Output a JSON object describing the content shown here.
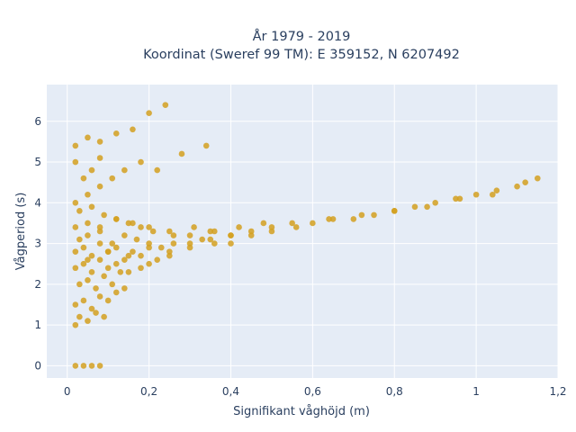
{
  "chart_data": {
    "type": "scatter",
    "title": "År 1979 - 2019",
    "subtitle": "Koordinat (Sweref 99 TM): E 359152, N 6207492",
    "xlabel": "Signifikant våghöjd (m)",
    "ylabel": "Vågperiod (s)",
    "xlim": [
      -0.05,
      1.2
    ],
    "ylim": [
      -0.3,
      6.9
    ],
    "x_ticks": [
      0,
      0.2,
      0.4,
      0.6,
      0.8,
      1,
      1.2
    ],
    "x_tick_labels": [
      "0",
      "0,2",
      "0,4",
      "0,6",
      "0,8",
      "1",
      "1,2"
    ],
    "y_ticks": [
      0,
      1,
      2,
      3,
      4,
      5,
      6
    ],
    "y_tick_labels": [
      "0",
      "1",
      "2",
      "3",
      "4",
      "5",
      "6"
    ],
    "grid": true,
    "marker_color": "#d4a020",
    "background_color": "#e5ecf6",
    "x": [
      0.02,
      0.04,
      0.06,
      0.08,
      0.02,
      0.03,
      0.05,
      0.07,
      0.09,
      0.02,
      0.04,
      0.06,
      0.08,
      0.1,
      0.12,
      0.14,
      0.03,
      0.05,
      0.07,
      0.09,
      0.11,
      0.13,
      0.02,
      0.04,
      0.06,
      0.08,
      0.1,
      0.12,
      0.15,
      0.18,
      0.02,
      0.04,
      0.06,
      0.08,
      0.1,
      0.12,
      0.14,
      0.16,
      0.18,
      0.2,
      0.22,
      0.25,
      0.03,
      0.05,
      0.08,
      0.11,
      0.14,
      0.17,
      0.2,
      0.23,
      0.26,
      0.3,
      0.33,
      0.36,
      0.4,
      0.05,
      0.1,
      0.15,
      0.2,
      0.25,
      0.3,
      0.35,
      0.4,
      0.45,
      0.5,
      0.02,
      0.05,
      0.08,
      0.12,
      0.16,
      0.2,
      0.25,
      0.3,
      0.35,
      0.4,
      0.45,
      0.5,
      0.55,
      0.6,
      0.65,
      0.7,
      0.75,
      0.8,
      0.85,
      0.9,
      0.95,
      1.0,
      1.05,
      1.1,
      1.15,
      0.03,
      0.06,
      0.09,
      0.12,
      0.15,
      0.18,
      0.21,
      0.26,
      0.31,
      0.36,
      0.42,
      0.48,
      0.56,
      0.64,
      0.72,
      0.8,
      0.88,
      0.96,
      1.04,
      1.12,
      0.02,
      0.05,
      0.08,
      0.11,
      0.14,
      0.18,
      0.22,
      0.28,
      0.34,
      0.02,
      0.05,
      0.08,
      0.12,
      0.16,
      0.2,
      0.24,
      0.02,
      0.04,
      0.06,
      0.08
    ],
    "y": [
      0,
      0,
      0,
      0,
      1.0,
      1.2,
      1.1,
      1.3,
      1.2,
      1.5,
      1.6,
      1.4,
      1.7,
      1.6,
      1.8,
      1.9,
      2.0,
      2.1,
      1.9,
      2.2,
      2.0,
      2.3,
      2.4,
      2.5,
      2.3,
      2.6,
      2.4,
      2.5,
      2.3,
      2.4,
      2.8,
      2.9,
      2.7,
      3.0,
      2.8,
      2.9,
      2.6,
      2.8,
      2.7,
      2.5,
      2.6,
      2.7,
      3.1,
      3.2,
      3.3,
      3.0,
      3.2,
      3.1,
      3.0,
      2.9,
      3.0,
      2.9,
      3.1,
      3.0,
      3.2,
      2.6,
      2.8,
      2.7,
      2.9,
      2.8,
      3.0,
      3.1,
      3.0,
      3.2,
      3.3,
      3.4,
      3.5,
      3.4,
      3.6,
      3.5,
      3.4,
      3.3,
      3.2,
      3.3,
      3.2,
      3.3,
      3.4,
      3.5,
      3.5,
      3.6,
      3.6,
      3.7,
      3.8,
      3.9,
      4.0,
      4.1,
      4.2,
      4.3,
      4.4,
      4.6,
      3.8,
      3.9,
      3.7,
      3.6,
      3.5,
      3.4,
      3.3,
      3.2,
      3.4,
      3.3,
      3.4,
      3.5,
      3.4,
      3.6,
      3.7,
      3.8,
      3.9,
      4.1,
      4.2,
      4.5,
      4.0,
      4.2,
      4.4,
      4.6,
      4.8,
      5.0,
      4.8,
      5.2,
      5.4,
      5.4,
      5.6,
      5.5,
      5.7,
      5.8,
      6.2,
      6.4,
      5.0,
      4.6,
      4.8,
      5.1
    ]
  }
}
